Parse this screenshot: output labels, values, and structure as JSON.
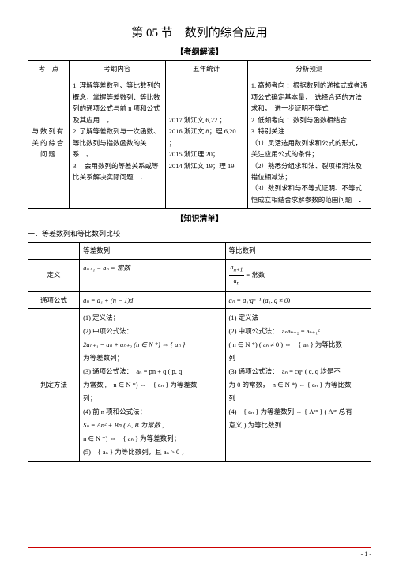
{
  "title": "第 05 节　数列的综合应用",
  "subtitle1": "【考纲解读】",
  "table1": {
    "headers": [
      "考　点",
      "考纲内容",
      "五年统计",
      "分析预测"
    ],
    "row1_col1": "与数列有关的综合问题",
    "row1_col2": "1. 理解等差数列、等比数列的概念，掌握等差数列、等比数列的通项公式与前 n 项和公式及其应用　。\n2. 了解等差数列与一次函数、等比数列与指数函数的关系　。\n3.　会用数列的等差关系或等比关系解决实际问题　．",
    "row1_col3": "2017 浙江文 6,22 ；\n2016 浙江文 8；理 6,20 ；\n2015 浙江理 20；\n2014 浙江文 19；理 19.",
    "row1_col4": "1. 高频考向 ：根据数列的递推式或者通项公式确定基本量，　选择合适的方法求和，　进一步证明不等式\n2. 低频考向 ：数列与函数相结合 .\n3. 特别关注 ：\n（1）灵活选用数列求和公式的形式，关注应用公式的条件；\n（2）熟悉分组求和法、裂项相消法及错位相减法；\n（3）数列求和与不等式证明、不等式恒成立相结合求解参数的范围问题　．"
  },
  "subtitle2": "【知识清单】",
  "section_text": "一．等差数列和等比数列比较",
  "table2": {
    "h1": "",
    "h2": "等差数列",
    "h3": "等比数列",
    "r1": "定义",
    "r1c2_formula": "aₙ₊₁ − aₙ = 常数",
    "r1c3_formula_part": " = 常数",
    "r2": "通项公式",
    "r2c2": "aₙ = a₁ + (n − 1)d",
    "r2c3": "aₙ = a₁·qⁿ⁻¹ (a₁, q ≠ 0)",
    "r3": "判定方法",
    "r3c2_1": "(1) 定义法；",
    "r3c2_2": "(2) 中项公式法：",
    "r3c2_2b": "2aₙ₊₁ = aₙ + aₙ₊₂ (n ∈ N *) ⇔ { aₙ }",
    "r3c2_2c": "为等差数列；",
    "r3c2_3": "(3) 通项公式法：　aₙ = pn + q ( p, q",
    "r3c2_3b": "为常数 ,　n ∈ N *) ⇔　{ aₙ } 为等差数",
    "r3c2_3c": "列；",
    "r3c2_4": "(4) 前 n 项和公式法：",
    "r3c2_4b": "Sₙ = An² + Bn ( A, B 为常数 ,",
    "r3c2_4c": "n ∈ N *) ⇔　{ aₙ } 为等差数列；",
    "r3c2_5": "(5)　{ aₙ } 为等比数列，且 aₙ > 0 ，",
    "r3c3_1": "(1) 定义法",
    "r3c3_2": "(2) 中项公式法：　aₙaₙ₊₂ = aₙ₊₁²",
    "r3c3_2b": "( n ∈ N *) ( aₙ ≠ 0 ) ⇔　{ aₙ } 为等比数",
    "r3c3_2c": "列",
    "r3c3_3": "(3) 通项公式法：　aₙ = cqⁿ ( c, q 均是不",
    "r3c3_3b": "为 0 的常数，　n ∈ N *) ⇔ { aₙ } 为等比数",
    "r3c3_3c": "列",
    "r3c3_4": "(4)　{ aₙ } 为等差数列 ⇔ { Aᵃⁿ } ( Aᵃⁿ 总有",
    "r3c3_4b": "意义 ) 为等比数列"
  },
  "page": "- 1 -"
}
